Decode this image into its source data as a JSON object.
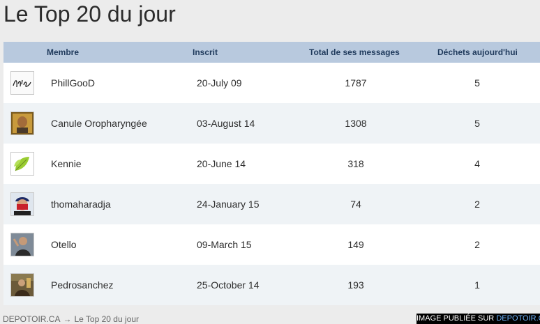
{
  "page": {
    "title": "Le Top 20 du jour"
  },
  "table": {
    "headers": {
      "member": "Membre",
      "registered": "Inscrit",
      "total_messages": "Total de ses messages",
      "today": "Déchets aujourd'hui"
    },
    "rows": [
      {
        "name": "PhillGooD",
        "registered": "20-July 09",
        "total": "1787",
        "today": "5",
        "avatar": "signature-avatar"
      },
      {
        "name": "Canule Oropharyngée",
        "registered": "03-August 14",
        "total": "1308",
        "today": "5",
        "avatar": "portrait-avatar"
      },
      {
        "name": "Kennie",
        "registered": "20-June 14",
        "total": "318",
        "today": "4",
        "avatar": "leaf-avatar"
      },
      {
        "name": "thomaharadja",
        "registered": "24-January 15",
        "total": "74",
        "today": "2",
        "avatar": "masked-face-avatar"
      },
      {
        "name": "Otello",
        "registered": "09-March 15",
        "total": "149",
        "today": "2",
        "avatar": "photo-avatar"
      },
      {
        "name": "Pedrosanchez",
        "registered": "25-October 14",
        "total": "193",
        "today": "1",
        "avatar": "photo-avatar"
      }
    ]
  },
  "footer": {
    "site_link": "DEPOTOIR.CA",
    "arrow": "→",
    "current_page": "Le Top 20 du jour",
    "watermark_prefix": "IMAGE PUBLIÉE SUR",
    "watermark_brand": "DEPOTOIR.CA"
  },
  "colors": {
    "header_bg": "#b8c9de",
    "header_text": "#1f3a5c",
    "row_alt": "#eff3f6",
    "watermark_brand": "#6fb6ff"
  }
}
